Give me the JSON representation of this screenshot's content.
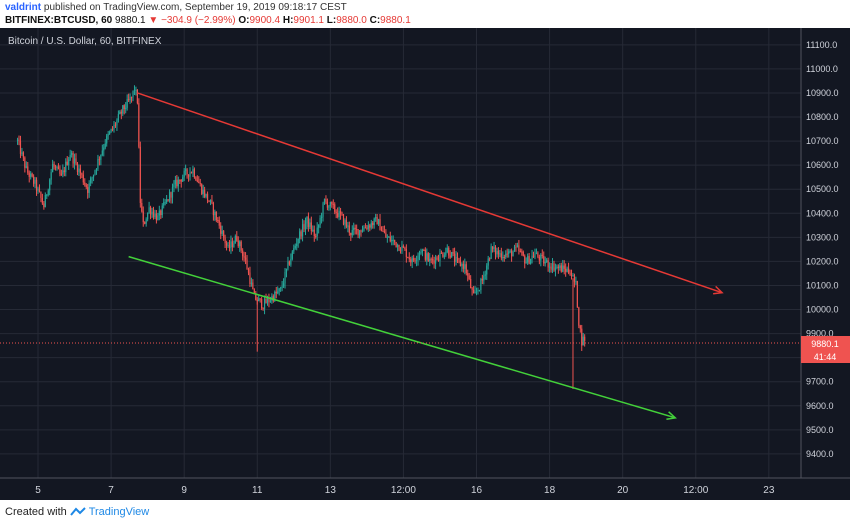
{
  "header": {
    "author": "valdrint",
    "published_text": "published on TradingView.com, September 19, 2019 09:18:17 CEST",
    "symbol": "BITFINEX:BTCUSD, 60",
    "last": "9880.1",
    "change": "▼ −304.9 (−2.99%)",
    "o_label": "O:",
    "o_value": "9900.4",
    "h_label": "H:",
    "h_value": "9901.1",
    "l_label": "L:",
    "l_value": "9880.0",
    "c_label": "C:",
    "c_value": "9880.1"
  },
  "footer": {
    "created_with": "Created with",
    "brand": "TradingView"
  },
  "colors": {
    "background": "#131722",
    "grid": "#262a36",
    "up": "#26a69a",
    "down": "#ef5350",
    "resistance": "#e53935",
    "support": "#43d13a",
    "price_label_bg": "#ef5350"
  },
  "chart_data": {
    "type": "candlestick",
    "title": "Bitcoin / U.S. Dollar, 60, BITFINEX",
    "x_tick_labels": [
      "5",
      "7",
      "9",
      "11",
      "13",
      "12:00",
      "16",
      "18",
      "20",
      "12:00",
      "23"
    ],
    "y_tick_labels": [
      "9400.0",
      "9500.0",
      "9600.0",
      "9700.0",
      "9800.0",
      "9900.0",
      "10000.0",
      "10100.0",
      "10200.0",
      "10300.0",
      "10400.0",
      "10500.0",
      "10600.0",
      "10700.0",
      "10800.0",
      "10900.0",
      "11000.0",
      "11100.0"
    ],
    "ylim": [
      9300,
      11170
    ],
    "grid": true,
    "last_price_label": "9880.1",
    "countdown_label": "41:44",
    "price_path": [
      [
        0,
        10700
      ],
      [
        3,
        10580
      ],
      [
        6,
        10520
      ],
      [
        9,
        10430
      ],
      [
        12,
        10600
      ],
      [
        15,
        10550
      ],
      [
        18,
        10650
      ],
      [
        21,
        10580
      ],
      [
        24,
        10500
      ],
      [
        27,
        10600
      ],
      [
        30,
        10700
      ],
      [
        33,
        10760
      ],
      [
        36,
        10830
      ],
      [
        39,
        10880
      ],
      [
        40,
        10920
      ],
      [
        41,
        10870
      ],
      [
        42,
        10450
      ],
      [
        43,
        10350
      ],
      [
        45,
        10420
      ],
      [
        48,
        10380
      ],
      [
        51,
        10450
      ],
      [
        54,
        10520
      ],
      [
        57,
        10560
      ],
      [
        60,
        10580
      ],
      [
        63,
        10500
      ],
      [
        66,
        10440
      ],
      [
        69,
        10350
      ],
      [
        72,
        10250
      ],
      [
        75,
        10300
      ],
      [
        78,
        10200
      ],
      [
        81,
        10050
      ],
      [
        84,
        10020
      ],
      [
        87,
        10050
      ],
      [
        90,
        10080
      ],
      [
        93,
        10200
      ],
      [
        96,
        10300
      ],
      [
        99,
        10370
      ],
      [
        102,
        10300
      ],
      [
        105,
        10450
      ],
      [
        108,
        10420
      ],
      [
        111,
        10380
      ],
      [
        114,
        10320
      ],
      [
        117,
        10330
      ],
      [
        120,
        10350
      ],
      [
        123,
        10370
      ],
      [
        126,
        10300
      ],
      [
        129,
        10280
      ],
      [
        132,
        10250
      ],
      [
        135,
        10200
      ],
      [
        138,
        10250
      ],
      [
        141,
        10200
      ],
      [
        144,
        10220
      ],
      [
        147,
        10250
      ],
      [
        150,
        10200
      ],
      [
        153,
        10180
      ],
      [
        156,
        10050
      ],
      [
        159,
        10120
      ],
      [
        162,
        10250
      ],
      [
        165,
        10230
      ],
      [
        168,
        10230
      ],
      [
        171,
        10250
      ],
      [
        174,
        10200
      ],
      [
        177,
        10230
      ],
      [
        180,
        10200
      ],
      [
        183,
        10180
      ],
      [
        186,
        10170
      ],
      [
        189,
        10160
      ],
      [
        191,
        10100
      ],
      [
        192,
        9950
      ],
      [
        193,
        9870
      ],
      [
        194,
        9880
      ]
    ],
    "wicks": [
      {
        "x": 82,
        "low": 9825
      },
      {
        "x": 190,
        "low": 9670
      }
    ],
    "trendlines": [
      {
        "name": "resistance",
        "start": [
          41,
          10900
        ],
        "end": [
          241,
          10070
        ],
        "arrow": true
      },
      {
        "name": "support",
        "start": [
          38,
          10220
        ],
        "end": [
          225,
          9550
        ],
        "arrow": true
      }
    ],
    "x_tick_positions": [
      7,
      32,
      57,
      82,
      107,
      132,
      157,
      182,
      207,
      232,
      257
    ],
    "x_range": [
      -6,
      268
    ]
  }
}
